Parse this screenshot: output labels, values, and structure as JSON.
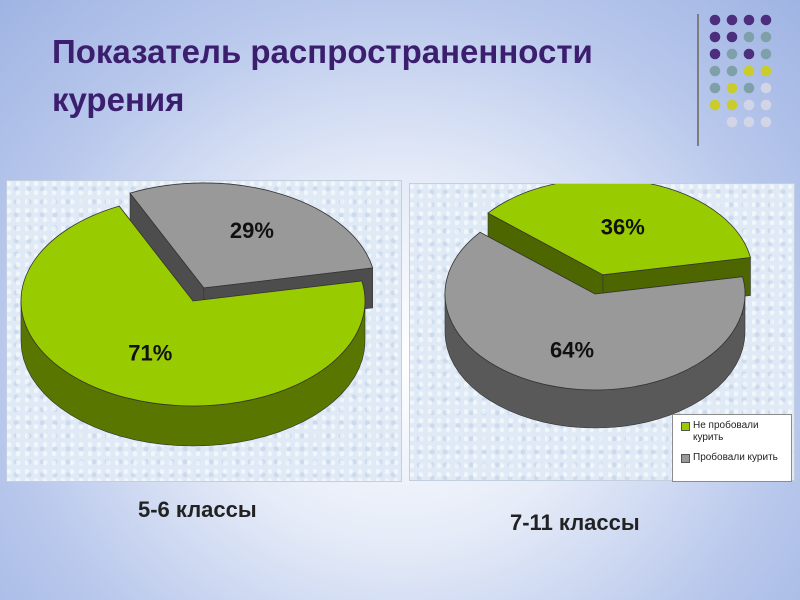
{
  "title": "Показатель распространенности курения",
  "captions": [
    "5-6 классы",
    "7-11 классы"
  ],
  "colors": {
    "title": "#3b1f6e",
    "green": "#99cc00",
    "gray": "#999999",
    "dot_purple": "#4d2d7d",
    "dot_teal": "#7fa0a8",
    "dot_yellow": "#c9cc2a",
    "dot_light": "#d2d5e6"
  },
  "legend": {
    "items": [
      {
        "label": "Не пробовали курить",
        "color": "#99cc00"
      },
      {
        "label": "Пробовали курить",
        "color": "#999999"
      }
    ]
  },
  "chart_data": [
    {
      "type": "pie",
      "style": "3d-exploded",
      "caption": "5-6 классы",
      "slices": [
        {
          "label": "Не пробовали курить",
          "value": 71,
          "text": "71%",
          "color": "#99cc00"
        },
        {
          "label": "Пробовали курить",
          "value": 29,
          "text": "29%",
          "color": "#999999"
        }
      ]
    },
    {
      "type": "pie",
      "style": "3d-exploded",
      "caption": "7-11 классы",
      "legend_position": "bottom-right",
      "slices": [
        {
          "label": "Не пробовали курить",
          "value": 36,
          "text": "36%",
          "color": "#99cc00"
        },
        {
          "label": "Пробовали курить",
          "value": 64,
          "text": "64%",
          "color": "#999999"
        }
      ]
    }
  ]
}
